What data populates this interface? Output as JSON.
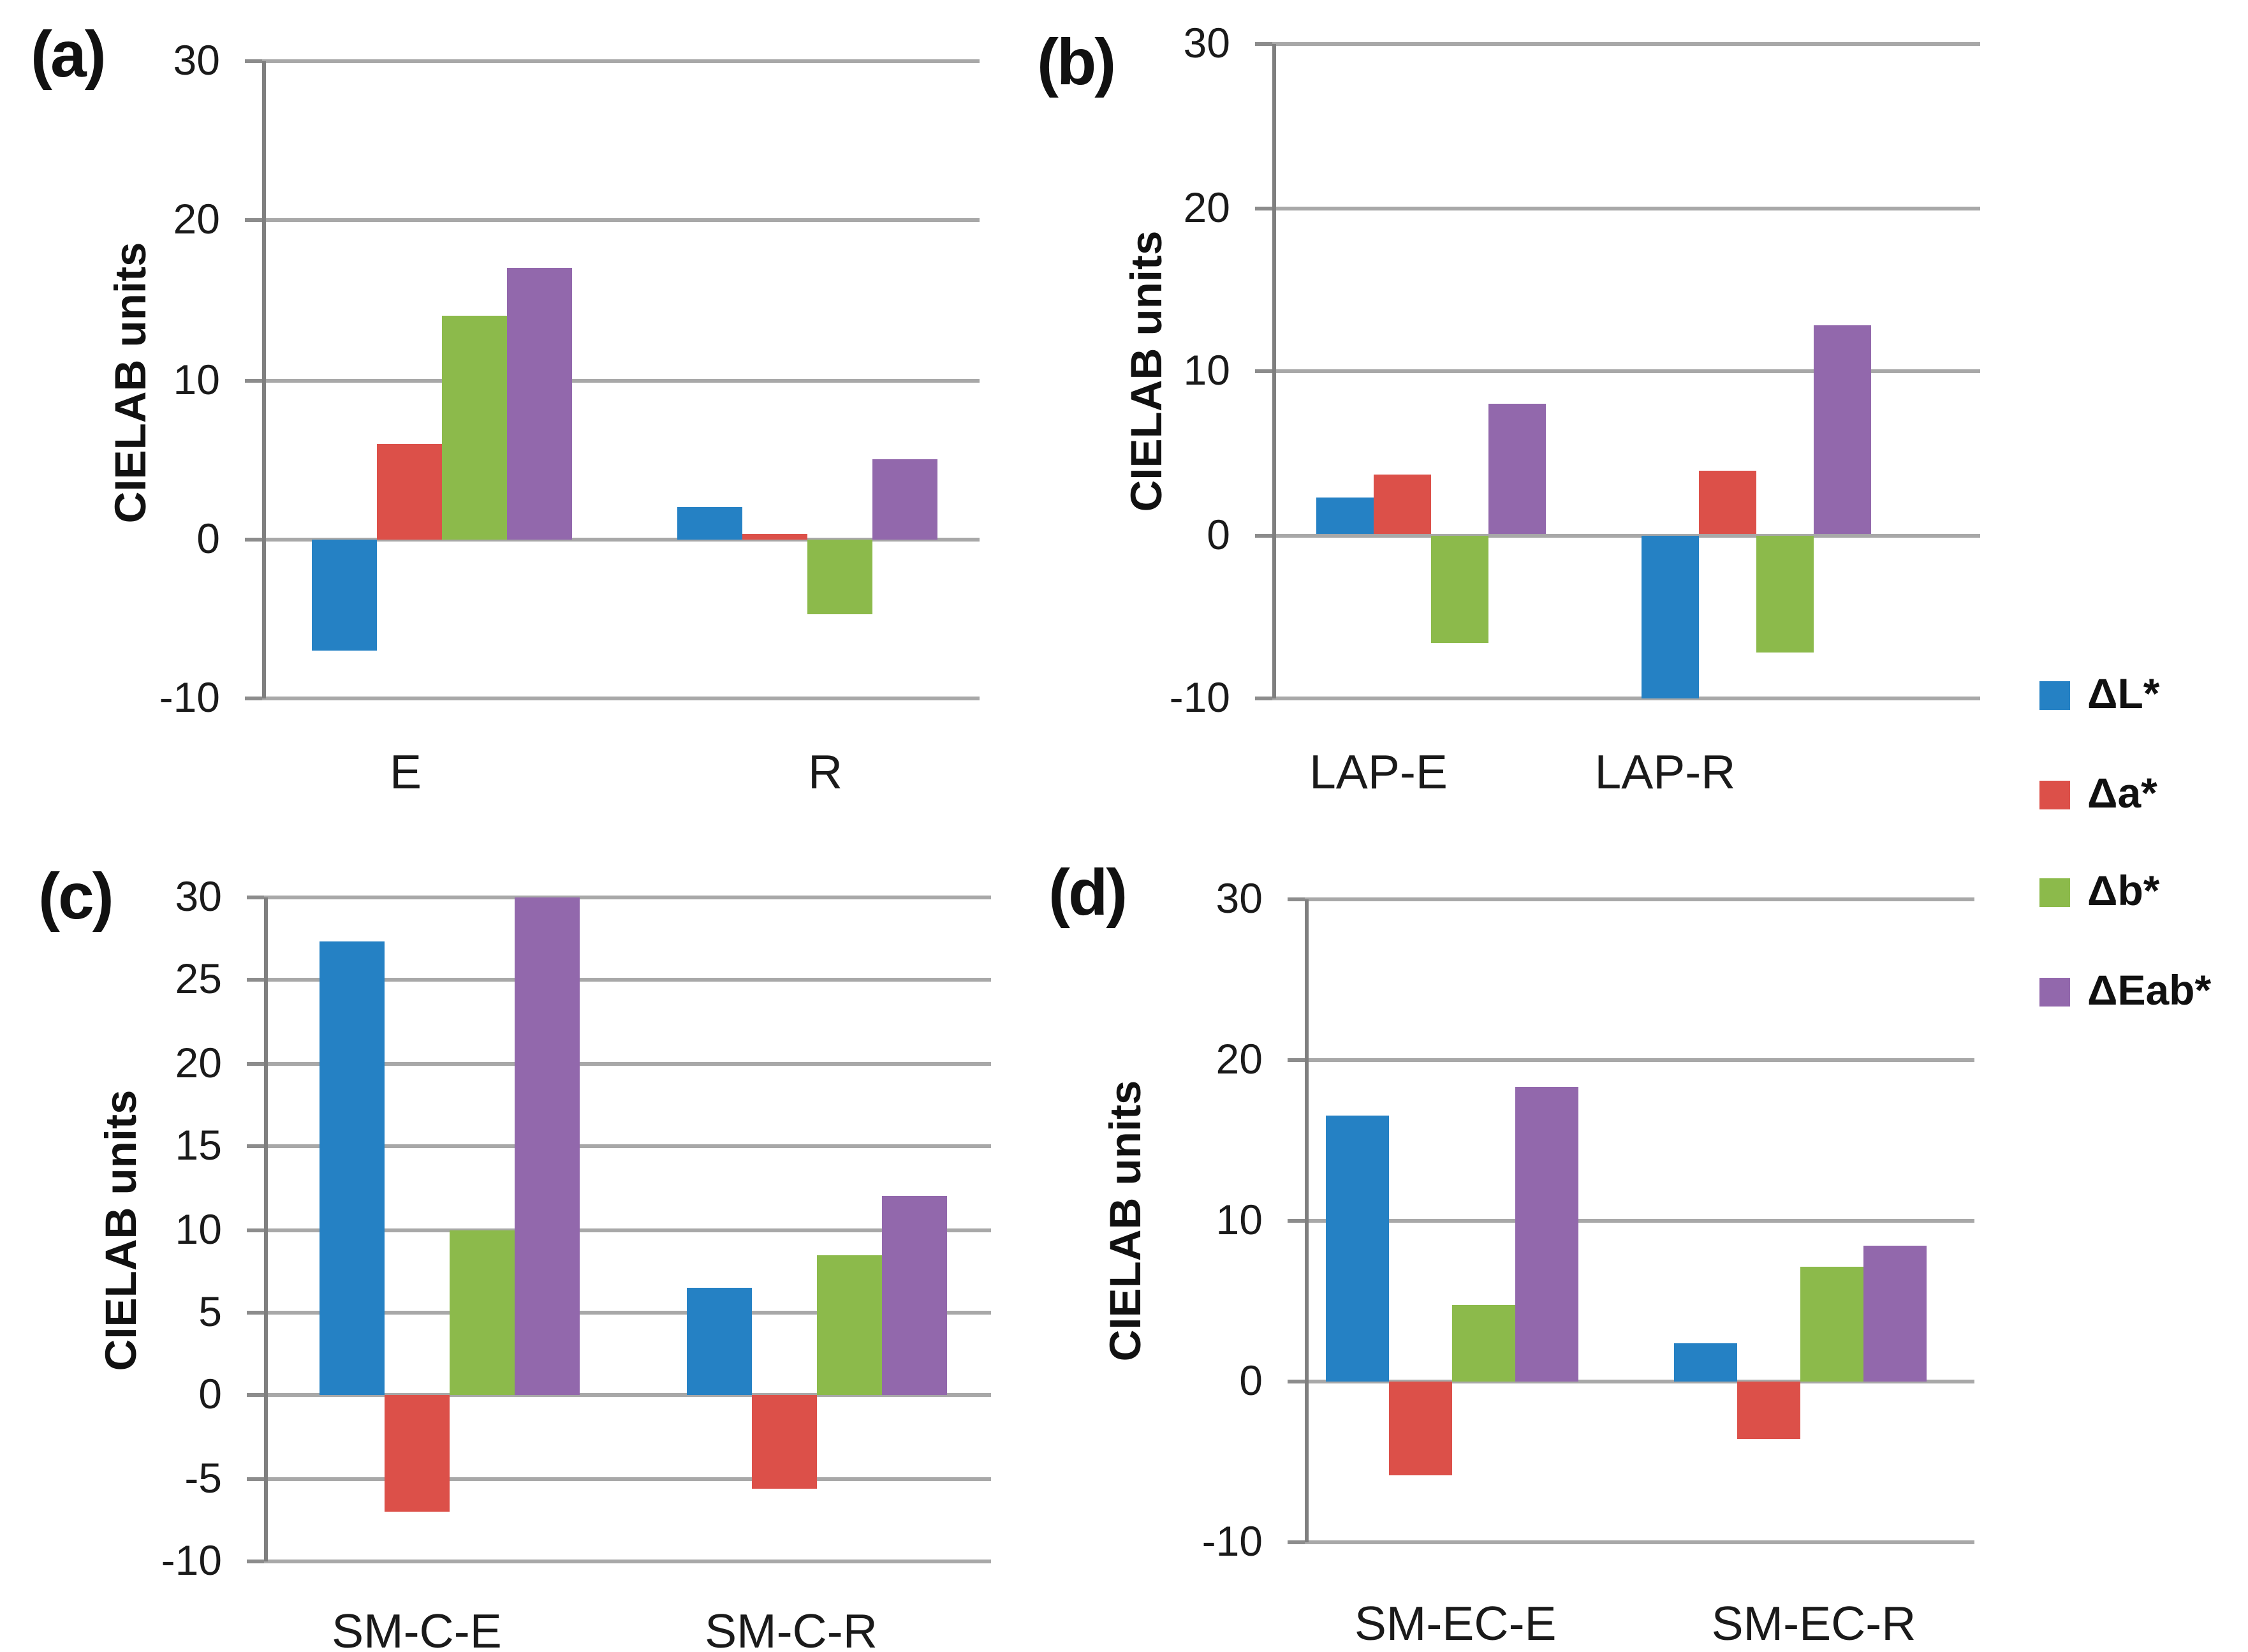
{
  "figure": {
    "type": "multi-panel-bar-figure",
    "background": "#ffffff",
    "grid_color": "#a8a8a8",
    "axis_color": "#7f7f7f"
  },
  "legend": {
    "items": [
      {
        "label": "ΔL*",
        "color": "#2581c4",
        "icon": "blue-square"
      },
      {
        "label": "Δa*",
        "color": "#dc5049",
        "icon": "red-square"
      },
      {
        "label": "Δb*",
        "color": "#8cba4b",
        "icon": "green-square"
      },
      {
        "label": "ΔEab*",
        "color": "#9268ac",
        "icon": "purple-square"
      }
    ]
  },
  "chart_data": [
    {
      "panel": "a",
      "panel_letter": "(a)",
      "type": "bar",
      "title": "",
      "xlabel": "",
      "ylabel": "CIELAB units",
      "ylim": [
        -10,
        30
      ],
      "ytick_step": 10,
      "grid": true,
      "legend_position": "right-of-figure",
      "categories": [
        "E",
        "R"
      ],
      "series": [
        {
          "name": "ΔL*",
          "color": "#2581c4",
          "values": [
            -7.0,
            2.0
          ]
        },
        {
          "name": "Δa*",
          "color": "#dc5049",
          "values": [
            6.0,
            0.3
          ]
        },
        {
          "name": "Δb*",
          "color": "#8cba4b",
          "values": [
            14.0,
            -4.7
          ]
        },
        {
          "name": "ΔEab*",
          "color": "#9268ac",
          "values": [
            17.0,
            5.0
          ]
        }
      ]
    },
    {
      "panel": "b",
      "panel_letter": "(b)",
      "type": "bar",
      "title": "",
      "xlabel": "",
      "ylabel": "CIELAB units",
      "ylim": [
        -10,
        30
      ],
      "ytick_step": 10,
      "grid": true,
      "legend_position": "right-of-figure",
      "categories": [
        "LAP-E",
        "LAP-R"
      ],
      "series": [
        {
          "name": "ΔL*",
          "color": "#2581c4",
          "values": [
            2.3,
            -10.0
          ]
        },
        {
          "name": "Δa*",
          "color": "#dc5049",
          "values": [
            3.7,
            3.9
          ]
        },
        {
          "name": "Δb*",
          "color": "#8cba4b",
          "values": [
            -6.6,
            -7.2
          ]
        },
        {
          "name": "ΔEab*",
          "color": "#9268ac",
          "values": [
            8.0,
            12.8
          ]
        }
      ]
    },
    {
      "panel": "c",
      "panel_letter": "(c)",
      "type": "bar",
      "title": "",
      "xlabel": "",
      "ylabel": "CIELAB units",
      "ylim": [
        -10,
        30
      ],
      "ytick_step": 5,
      "grid": true,
      "legend_position": "right-of-figure",
      "categories": [
        "SM-C-E",
        "SM-C-R"
      ],
      "series": [
        {
          "name": "ΔL*",
          "color": "#2581c4",
          "values": [
            27.3,
            6.5
          ]
        },
        {
          "name": "Δa*",
          "color": "#dc5049",
          "values": [
            -7.0,
            -5.6
          ]
        },
        {
          "name": "Δb*",
          "color": "#8cba4b",
          "values": [
            10.0,
            8.5
          ]
        },
        {
          "name": "ΔEab*",
          "color": "#9268ac",
          "values": [
            30.0,
            12.0
          ]
        }
      ]
    },
    {
      "panel": "d",
      "panel_letter": "(d)",
      "type": "bar",
      "title": "",
      "xlabel": "",
      "ylabel": "CIELAB units",
      "ylim": [
        -10,
        30
      ],
      "ytick_step": 10,
      "grid": true,
      "legend_position": "right-of-figure",
      "categories": [
        "SM-EC-E",
        "SM-EC-R"
      ],
      "series": [
        {
          "name": "ΔL*",
          "color": "#2581c4",
          "values": [
            16.5,
            2.4
          ]
        },
        {
          "name": "Δa*",
          "color": "#dc5049",
          "values": [
            -5.8,
            -3.6
          ]
        },
        {
          "name": "Δb*",
          "color": "#8cba4b",
          "values": [
            4.8,
            7.2
          ]
        },
        {
          "name": "ΔEab*",
          "color": "#9268ac",
          "values": [
            18.3,
            8.4
          ]
        }
      ]
    }
  ]
}
